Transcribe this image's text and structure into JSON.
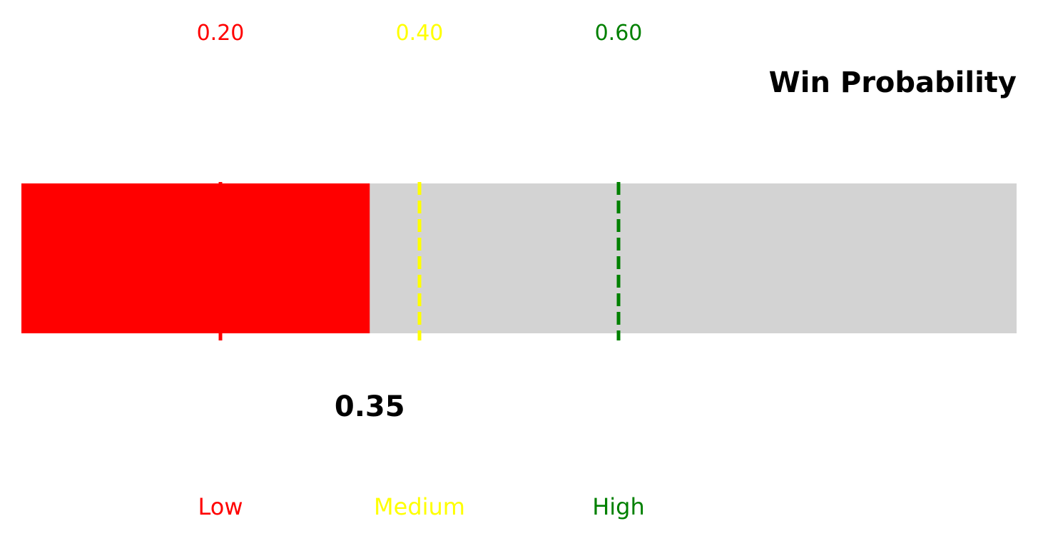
{
  "chart_data": {
    "type": "bullet",
    "title": "Win Probability",
    "value": 0.35,
    "value_label": "0.35",
    "xlim": [
      0.0,
      1.0
    ],
    "track_color": "#d3d3d3",
    "bar_color": "#ff0000",
    "value_label_color": "#000000",
    "thresholds": [
      {
        "value": 0.2,
        "tick_label": "0.20",
        "band_label": "Low",
        "color": "#ff0000",
        "linestyle": "solid"
      },
      {
        "value": 0.4,
        "tick_label": "0.40",
        "band_label": "Medium",
        "color": "#ffff00",
        "linestyle": "dashed"
      },
      {
        "value": 0.6,
        "tick_label": "0.60",
        "band_label": "High",
        "color": "#008000",
        "linestyle": "dashed"
      }
    ]
  }
}
